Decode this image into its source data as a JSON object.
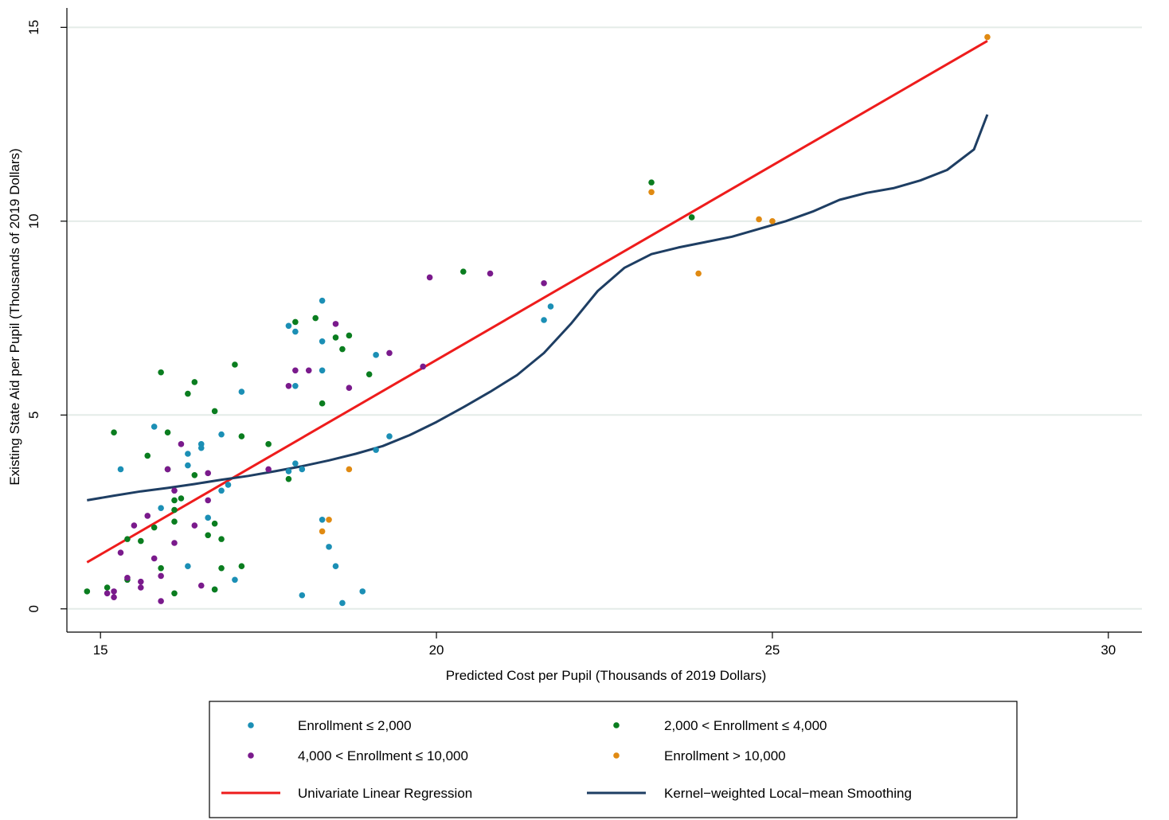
{
  "chart_data": {
    "type": "scatter",
    "title": "",
    "xlabel": "Predicted Cost per Pupil (Thousands of 2019 Dollars)",
    "ylabel": "Existing State Aid per Pupil (Thousands of 2019 Dollars)",
    "xlim": [
      14.5,
      30.5
    ],
    "ylim": [
      -0.6,
      15.5
    ],
    "x_ticks": [
      15,
      20,
      25,
      30
    ],
    "y_ticks": [
      0,
      5,
      10,
      15
    ],
    "grid": "horizontal",
    "legend_position": "bottom",
    "series": [
      {
        "name": "Enrollment ≤ 2,000",
        "kind": "points",
        "color": "#1b8fb5",
        "points": [
          [
            15.3,
            3.6
          ],
          [
            15.8,
            4.7
          ],
          [
            15.9,
            2.6
          ],
          [
            16.3,
            3.7
          ],
          [
            16.3,
            4.0
          ],
          [
            16.5,
            4.25
          ],
          [
            16.5,
            4.15
          ],
          [
            16.6,
            2.35
          ],
          [
            16.8,
            4.5
          ],
          [
            16.9,
            3.2
          ],
          [
            16.8,
            3.05
          ],
          [
            17.0,
            0.75
          ],
          [
            16.3,
            1.1
          ],
          [
            16.7,
            0.5
          ],
          [
            17.1,
            5.6
          ],
          [
            17.8,
            7.3
          ],
          [
            17.9,
            7.15
          ],
          [
            17.9,
            5.75
          ],
          [
            17.9,
            3.75
          ],
          [
            17.8,
            3.55
          ],
          [
            18.0,
            3.6
          ],
          [
            18.3,
            7.95
          ],
          [
            18.3,
            6.9
          ],
          [
            18.3,
            6.15
          ],
          [
            18.3,
            2.3
          ],
          [
            18.4,
            1.6
          ],
          [
            18.5,
            1.1
          ],
          [
            18.6,
            0.15
          ],
          [
            18.0,
            0.35
          ],
          [
            18.9,
            0.45
          ],
          [
            19.1,
            6.55
          ],
          [
            19.1,
            4.1
          ],
          [
            19.3,
            4.45
          ],
          [
            21.6,
            7.45
          ],
          [
            21.7,
            7.8
          ]
        ]
      },
      {
        "name": "2,000 < Enrollment ≤ 4,000",
        "kind": "points",
        "color": "#0a7d1f",
        "points": [
          [
            14.8,
            0.45
          ],
          [
            15.1,
            0.55
          ],
          [
            15.2,
            4.55
          ],
          [
            15.4,
            1.8
          ],
          [
            15.4,
            0.75
          ],
          [
            15.6,
            1.75
          ],
          [
            15.7,
            3.95
          ],
          [
            15.8,
            2.1
          ],
          [
            15.9,
            1.05
          ],
          [
            15.9,
            6.1
          ],
          [
            16.0,
            4.55
          ],
          [
            16.0,
            3.6
          ],
          [
            16.1,
            2.8
          ],
          [
            16.1,
            2.25
          ],
          [
            16.1,
            2.55
          ],
          [
            16.2,
            2.85
          ],
          [
            16.1,
            0.4
          ],
          [
            16.3,
            5.55
          ],
          [
            16.4,
            5.85
          ],
          [
            16.4,
            3.45
          ],
          [
            16.6,
            1.9
          ],
          [
            16.7,
            2.2
          ],
          [
            16.7,
            0.5
          ],
          [
            16.7,
            5.1
          ],
          [
            16.8,
            1.8
          ],
          [
            16.8,
            1.05
          ],
          [
            17.0,
            6.3
          ],
          [
            17.1,
            4.45
          ],
          [
            17.1,
            1.1
          ],
          [
            17.5,
            4.25
          ],
          [
            17.8,
            3.35
          ],
          [
            17.9,
            7.4
          ],
          [
            18.2,
            7.5
          ],
          [
            18.3,
            5.3
          ],
          [
            18.5,
            7.0
          ],
          [
            18.6,
            6.7
          ],
          [
            18.7,
            7.05
          ],
          [
            19.0,
            6.05
          ],
          [
            20.4,
            8.7
          ],
          [
            23.2,
            11.0
          ],
          [
            23.8,
            10.1
          ]
        ]
      },
      {
        "name": "4,000 < Enrollment ≤ 10,000",
        "kind": "points",
        "color": "#7a1a8c",
        "points": [
          [
            15.1,
            0.4
          ],
          [
            15.2,
            0.45
          ],
          [
            15.2,
            0.3
          ],
          [
            15.3,
            1.45
          ],
          [
            15.4,
            0.8
          ],
          [
            15.5,
            2.15
          ],
          [
            15.6,
            0.55
          ],
          [
            15.6,
            0.7
          ],
          [
            15.7,
            2.4
          ],
          [
            15.8,
            1.3
          ],
          [
            15.9,
            0.85
          ],
          [
            15.9,
            0.2
          ],
          [
            16.0,
            3.6
          ],
          [
            16.1,
            3.05
          ],
          [
            16.1,
            1.7
          ],
          [
            16.2,
            4.25
          ],
          [
            16.4,
            2.15
          ],
          [
            16.5,
            0.6
          ],
          [
            16.6,
            2.8
          ],
          [
            16.6,
            3.5
          ],
          [
            17.5,
            3.6
          ],
          [
            17.8,
            5.75
          ],
          [
            17.9,
            6.15
          ],
          [
            18.1,
            6.15
          ],
          [
            18.5,
            7.35
          ],
          [
            18.7,
            5.7
          ],
          [
            19.3,
            6.6
          ],
          [
            19.8,
            6.25
          ],
          [
            19.9,
            8.55
          ],
          [
            20.8,
            8.65
          ],
          [
            21.6,
            8.4
          ]
        ]
      },
      {
        "name": "Enrollment > 10,000",
        "kind": "points",
        "color": "#e08a12",
        "points": [
          [
            18.3,
            2.0
          ],
          [
            18.4,
            2.3
          ],
          [
            18.7,
            3.6
          ],
          [
            23.2,
            10.75
          ],
          [
            23.9,
            8.65
          ],
          [
            24.8,
            10.05
          ],
          [
            25.0,
            10.0
          ],
          [
            28.2,
            14.75
          ]
        ]
      },
      {
        "name": "Univariate Linear Regression",
        "kind": "line",
        "color": "#ee1c1c",
        "points": [
          [
            14.8,
            1.2
          ],
          [
            28.2,
            14.65
          ]
        ]
      },
      {
        "name": "Kernel−weighted Local−mean Smoothing",
        "kind": "line",
        "color": "#1e3e63",
        "points": [
          [
            14.8,
            2.8
          ],
          [
            15.2,
            2.92
          ],
          [
            15.6,
            3.03
          ],
          [
            16.0,
            3.12
          ],
          [
            16.4,
            3.22
          ],
          [
            16.8,
            3.33
          ],
          [
            17.2,
            3.43
          ],
          [
            17.6,
            3.55
          ],
          [
            18.0,
            3.68
          ],
          [
            18.4,
            3.83
          ],
          [
            18.8,
            4.0
          ],
          [
            19.2,
            4.2
          ],
          [
            19.6,
            4.48
          ],
          [
            20.0,
            4.82
          ],
          [
            20.4,
            5.2
          ],
          [
            20.8,
            5.6
          ],
          [
            21.2,
            6.03
          ],
          [
            21.6,
            6.6
          ],
          [
            22.0,
            7.35
          ],
          [
            22.4,
            8.2
          ],
          [
            22.8,
            8.8
          ],
          [
            23.2,
            9.15
          ],
          [
            23.6,
            9.32
          ],
          [
            24.0,
            9.46
          ],
          [
            24.4,
            9.6
          ],
          [
            24.8,
            9.8
          ],
          [
            25.2,
            10.0
          ],
          [
            25.6,
            10.25
          ],
          [
            26.0,
            10.55
          ],
          [
            26.4,
            10.73
          ],
          [
            26.8,
            10.85
          ],
          [
            27.2,
            11.05
          ],
          [
            27.6,
            11.32
          ],
          [
            28.0,
            11.85
          ],
          [
            28.2,
            12.75
          ]
        ]
      }
    ]
  },
  "legend": {
    "items": [
      {
        "label": "Enrollment ≤ 2,000",
        "symbol": "dot",
        "color": "#1b8fb5"
      },
      {
        "label": "2,000 < Enrollment ≤ 4,000",
        "symbol": "dot",
        "color": "#0a7d1f"
      },
      {
        "label": "4,000 < Enrollment ≤ 10,000",
        "symbol": "dot",
        "color": "#7a1a8c"
      },
      {
        "label": "Enrollment > 10,000",
        "symbol": "dot",
        "color": "#e08a12"
      },
      {
        "label": "Univariate Linear Regression",
        "symbol": "line",
        "color": "#ee1c1c"
      },
      {
        "label": "Kernel−weighted Local−mean Smoothing",
        "symbol": "line",
        "color": "#1e3e63"
      }
    ]
  }
}
